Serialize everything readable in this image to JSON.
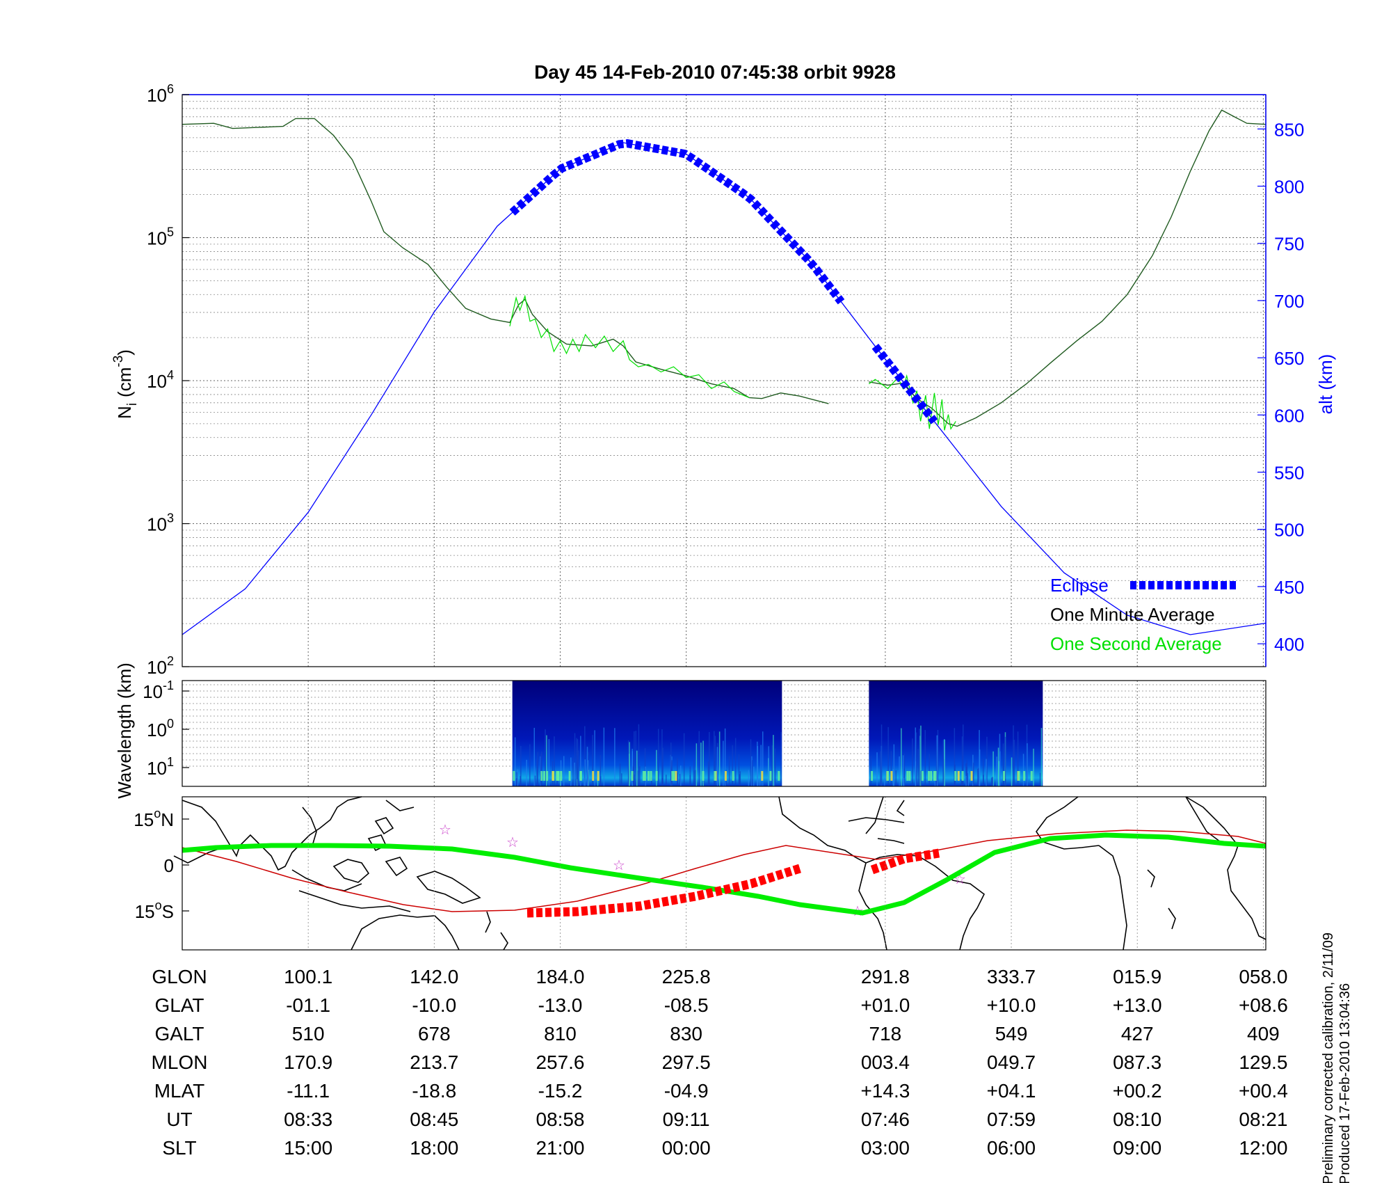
{
  "title": "Day 45  14-Feb-2010 07:45:38   orbit 9928",
  "footnote": [
    "Preliminary corrected calibration, 2/11/09",
    "Produced 17-Feb-2010 13:04:36"
  ],
  "colors": {
    "eclipse": "#0000ff",
    "altitude": "#0000ff",
    "one_minute": "#1f5a1f",
    "one_second": "#00e000",
    "track": "#00ee00",
    "orbit_line": "#cc0000",
    "orbit_eclipse": "#ff0000",
    "stars": "#cc44cc"
  },
  "chart_data": [
    {
      "type": "line",
      "name": "density",
      "ylabel": "N_i (cm^-3)",
      "ylabel_base": "N",
      "ylabel_sub": "i",
      "ylabel_unit": "(cm",
      "ylabel_sup": "-3",
      "ylabel_close": ")",
      "ylabel_right": "alt (km)",
      "yscale": "log",
      "ylim": [
        100,
        1000000
      ],
      "y_ticks": [
        {
          "base": "10",
          "exp": "2",
          "value": 100
        },
        {
          "base": "10",
          "exp": "3",
          "value": 1000
        },
        {
          "base": "10",
          "exp": "4",
          "value": 10000
        },
        {
          "base": "10",
          "exp": "5",
          "value": 100000
        },
        {
          "base": "10",
          "exp": "6",
          "value": 1000000
        }
      ],
      "y2lim": [
        380,
        880
      ],
      "y2_ticks": [
        "400",
        "450",
        "500",
        "550",
        "600",
        "650",
        "700",
        "750",
        "800",
        "850"
      ],
      "x_range": [
        0,
        8.6
      ],
      "x_grid": [
        1,
        2,
        3,
        4,
        5.58,
        6.58,
        7.58,
        8.58
      ],
      "grid": true,
      "legend_position": "bottom-right",
      "legend": [
        {
          "label": "Eclipse",
          "color": "#0000ff",
          "style": "dashed-thick"
        },
        {
          "label": "One Minute Average",
          "color": "#000000",
          "style": "none"
        },
        {
          "label": "One Second Average",
          "color": "#00e000",
          "style": "none"
        }
      ],
      "series": [
        {
          "name": "One Minute Average",
          "color": "#1f5a1f",
          "segments": [
            [
              [
                0,
                620000
              ],
              [
                0.25,
                630000
              ],
              [
                0.4,
                580000
              ],
              [
                0.6,
                590000
              ],
              [
                0.8,
                600000
              ],
              [
                0.9,
                680000
              ],
              [
                1.05,
                680000
              ],
              [
                1.2,
                520000
              ],
              [
                1.35,
                350000
              ],
              [
                1.5,
                180000
              ],
              [
                1.6,
                110000
              ],
              [
                1.75,
                85000
              ],
              [
                1.95,
                65000
              ],
              [
                2.1,
                45000
              ],
              [
                2.25,
                32000
              ],
              [
                2.45,
                27000
              ],
              [
                2.6,
                25500
              ],
              [
                2.67,
                34000
              ],
              [
                2.72,
                37000
              ],
              [
                2.78,
                29000
              ],
              [
                2.9,
                22000
              ],
              [
                3.05,
                18000
              ],
              [
                3.25,
                17500
              ],
              [
                3.42,
                19500
              ],
              [
                3.5,
                17500
              ],
              [
                3.6,
                13500
              ],
              [
                3.8,
                12000
              ],
              [
                4.0,
                10800
              ],
              [
                4.2,
                9500
              ],
              [
                4.38,
                8800
              ],
              [
                4.5,
                7600
              ],
              [
                4.6,
                7500
              ],
              [
                4.75,
                8200
              ],
              [
                4.9,
                7800
              ],
              [
                5.05,
                7200
              ],
              [
                5.13,
                6900
              ]
            ],
            [
              [
                5.45,
                9800
              ],
              [
                5.6,
                9300
              ],
              [
                5.72,
                9600
              ],
              [
                5.78,
                8300
              ],
              [
                5.85,
                7300
              ],
              [
                5.95,
                6400
              ],
              [
                6.02,
                5600
              ],
              [
                6.08,
                5000
              ],
              [
                6.15,
                4800
              ],
              [
                6.3,
                5500
              ],
              [
                6.5,
                7000
              ],
              [
                6.7,
                9500
              ],
              [
                6.9,
                13500
              ],
              [
                7.1,
                19000
              ],
              [
                7.3,
                26000
              ],
              [
                7.5,
                40000
              ],
              [
                7.7,
                75000
              ],
              [
                7.85,
                140000
              ],
              [
                8.0,
                290000
              ],
              [
                8.15,
                560000
              ],
              [
                8.25,
                780000
              ],
              [
                8.35,
                700000
              ],
              [
                8.45,
                630000
              ],
              [
                8.6,
                620000
              ]
            ]
          ]
        },
        {
          "name": "One Second Average",
          "color": "#00e000",
          "segments": [
            [
              [
                2.6,
                24000
              ],
              [
                2.65,
                38000
              ],
              [
                2.68,
                31000
              ],
              [
                2.72,
                39000
              ],
              [
                2.76,
                26000
              ],
              [
                2.8,
                27000
              ],
              [
                2.85,
                20000
              ],
              [
                2.9,
                23000
              ],
              [
                2.95,
                16000
              ],
              [
                3.0,
                19000
              ],
              [
                3.05,
                15500
              ],
              [
                3.1,
                19500
              ],
              [
                3.15,
                16000
              ],
              [
                3.2,
                21000
              ],
              [
                3.28,
                17000
              ],
              [
                3.35,
                20500
              ],
              [
                3.42,
                16000
              ],
              [
                3.5,
                19000
              ],
              [
                3.55,
                14000
              ],
              [
                3.62,
                12500
              ],
              [
                3.7,
                13000
              ],
              [
                3.8,
                11500
              ],
              [
                3.9,
                12500
              ],
              [
                4.0,
                10500
              ],
              [
                4.1,
                11000
              ],
              [
                4.2,
                8800
              ],
              [
                4.3,
                9800
              ],
              [
                4.38,
                8400
              ],
              [
                4.5,
                7600
              ]
            ],
            [
              [
                5.45,
                9500
              ],
              [
                5.5,
                10200
              ],
              [
                5.6,
                8800
              ],
              [
                5.68,
                10500
              ],
              [
                5.72,
                8800
              ],
              [
                5.75,
                10800
              ],
              [
                5.8,
                7000
              ],
              [
                5.83,
                8500
              ],
              [
                5.86,
                5200
              ],
              [
                5.9,
                7900
              ],
              [
                5.93,
                4600
              ],
              [
                5.97,
                8200
              ],
              [
                6.0,
                4900
              ],
              [
                6.03,
                7400
              ],
              [
                6.05,
                4500
              ],
              [
                6.08,
                5800
              ],
              [
                6.1,
                4600
              ],
              [
                6.14,
                5200
              ]
            ]
          ]
        },
        {
          "name": "Altitude",
          "color": "#0000ff",
          "axis": "right",
          "points": [
            [
              0,
              408
            ],
            [
              0.5,
              448
            ],
            [
              1.0,
              515
            ],
            [
              1.5,
              600
            ],
            [
              2.0,
              690
            ],
            [
              2.5,
              765
            ],
            [
              3.0,
              815
            ],
            [
              3.5,
              838
            ],
            [
              4.0,
              828
            ],
            [
              4.5,
              790
            ],
            [
              5.0,
              732
            ],
            [
              5.5,
              660
            ],
            [
              6.0,
              590
            ],
            [
              6.5,
              520
            ],
            [
              7.0,
              462
            ],
            [
              7.5,
              425
            ],
            [
              8.0,
              408
            ],
            [
              8.6,
              418
            ]
          ]
        },
        {
          "name": "Eclipse",
          "color": "#0000ff",
          "axis": "right",
          "style": "dashed-thick",
          "segments": [
            [
              2.62,
              5.23
            ],
            [
              5.5,
              5.97
            ]
          ]
        }
      ]
    },
    {
      "type": "heatmap",
      "name": "spectrogram",
      "ylabel": "Wavelength (km)",
      "y_ticks": [
        {
          "base": "10",
          "exp": "-1",
          "value": 0.1
        },
        {
          "base": "10",
          "exp": "0",
          "value": 1
        },
        {
          "base": "10",
          "exp": "1",
          "value": 10
        }
      ],
      "blocks": [
        [
          2.62,
          4.76
        ],
        [
          5.45,
          6.83
        ]
      ],
      "colormap": "jet"
    },
    {
      "type": "map",
      "name": "ground_track",
      "y_ticks": [
        {
          "text": "15",
          "deg": "o",
          "hemi": "N",
          "lat": 15
        },
        {
          "text": "0",
          "deg": "",
          "hemi": "",
          "lat": 0
        },
        {
          "text": "15",
          "deg": "o",
          "hemi": "S",
          "lat": -15
        }
      ],
      "ylim": [
        -25,
        25
      ]
    }
  ],
  "table": {
    "row_labels": [
      "GLON",
      "GLAT",
      "GALT",
      "MLON",
      "MLAT",
      "UT",
      "SLT"
    ],
    "columns": [
      [
        "100.1",
        "-01.1",
        "510",
        "170.9",
        "-11.1",
        "08:33",
        "15:00"
      ],
      [
        "142.0",
        "-10.0",
        "678",
        "213.7",
        "-18.8",
        "08:45",
        "18:00"
      ],
      [
        "184.0",
        "-13.0",
        "810",
        "257.6",
        "-15.2",
        "08:58",
        "21:00"
      ],
      [
        "225.8",
        "-08.5",
        "830",
        "297.5",
        "-04.9",
        "09:11",
        "00:00"
      ],
      [
        "291.8",
        "+01.0",
        "718",
        "003.4",
        "+14.3",
        "07:46",
        "03:00"
      ],
      [
        "333.7",
        "+10.0",
        "549",
        "049.7",
        "+04.1",
        "07:59",
        "06:00"
      ],
      [
        "015.9",
        "+13.0",
        "427",
        "087.3",
        "+00.2",
        "08:10",
        "09:00"
      ],
      [
        "058.0",
        "+08.6",
        "409",
        "129.5",
        "+00.4",
        "08:21",
        "12:00"
      ]
    ]
  }
}
